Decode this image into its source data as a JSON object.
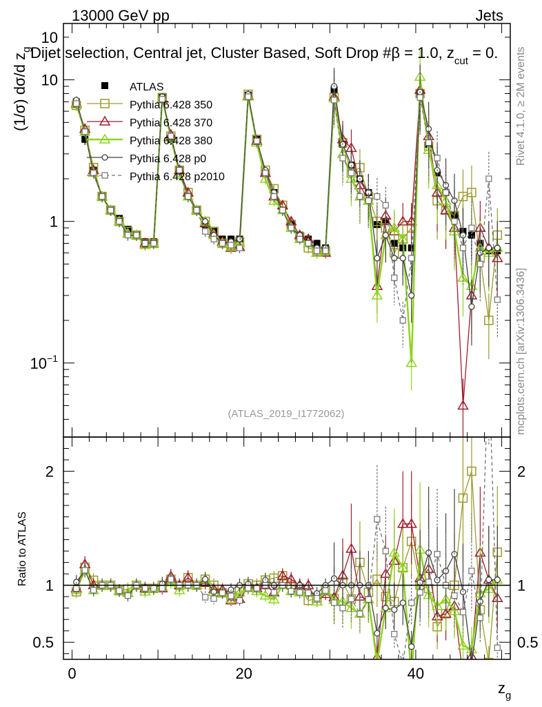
{
  "header": {
    "left": "13000 GeV pp",
    "right": "Jets"
  },
  "chart_title": "Dijet selection, Central jet, Cluster Based, Soft Drop #β = 1.0, z",
  "chart_title_sub": "cut",
  "chart_title_tail": " = 0.",
  "side_labels": {
    "rivet": "Rivet 4.1.0, ≥ 2M events",
    "mcplots": "mcplots.cern.ch [arXiv:1306.3436]"
  },
  "watermark": "(ATLAS_2019_I1772062)",
  "colors": {
    "ATLAS": "#000000",
    "350": "#9a9a2e",
    "370": "#a01c2c",
    "380": "#8fd41e",
    "p0": "#404040",
    "p2010": "#707070"
  },
  "chart_data": {
    "type": "line",
    "title": "Dijet selection, Central jet, Cluster Based, Soft Drop #β = 1.0, z_cut = 0.",
    "xlabel": "z_g",
    "ylabel_main": "(1/σ) dσ/d z_g",
    "ylabel_ratio": "Ratio to ATLAS",
    "xlim": [
      -1,
      51
    ],
    "ylim_main": [
      0.03,
      25
    ],
    "yscale_main": "log",
    "ylim_ratio": [
      0.35,
      2.3
    ],
    "x_ticks": [
      "0",
      "20",
      "40"
    ],
    "x_tick_values": [
      0,
      20,
      40
    ],
    "y_ticks_main": [
      {
        "v": 0.1,
        "label": "10",
        "sup": "−1"
      },
      {
        "v": 1,
        "label": "1",
        "sup": ""
      },
      {
        "v": 10,
        "label": "10",
        "sup": ""
      }
    ],
    "y_ticks_ratio": [
      {
        "v": 0.5,
        "label": "0.5"
      },
      {
        "v": 1,
        "label": "1"
      },
      {
        "v": 2,
        "label": "2"
      }
    ],
    "legend_position": "top-left",
    "x": [
      0.5,
      1.5,
      2.5,
      3.5,
      4.5,
      5.5,
      6.5,
      7.5,
      8.5,
      9.5,
      10.5,
      11.5,
      12.5,
      13.5,
      14.5,
      15.5,
      16.5,
      17.5,
      18.5,
      19.5,
      20.5,
      21.5,
      22.5,
      23.5,
      24.5,
      25.5,
      26.5,
      27.5,
      28.5,
      29.5,
      30.5,
      31.5,
      32.5,
      33.5,
      34.5,
      35.5,
      36.5,
      37.5,
      38.5,
      39.5,
      40.5,
      41.5,
      42.5,
      43.5,
      44.5,
      45.5,
      46.5,
      47.5,
      48.5,
      49.5
    ],
    "series": [
      {
        "name": "ATLAS",
        "key": "ATLAS",
        "style": "data",
        "values": [
          7.0,
          3.8,
          2.3,
          1.5,
          1.2,
          1.05,
          0.88,
          0.8,
          0.72,
          0.72,
          7.5,
          3.8,
          2.3,
          1.5,
          1.2,
          0.95,
          0.85,
          0.75,
          0.75,
          0.75,
          7.8,
          3.8,
          2.2,
          1.6,
          1.2,
          0.95,
          0.8,
          0.75,
          0.7,
          0.65,
          8.5,
          3.5,
          2.5,
          2.0,
          1.6,
          0.95,
          1.0,
          0.7,
          0.65,
          0.65,
          8.0,
          3.5,
          2.2,
          1.6,
          1.1,
          0.85,
          0.8,
          0.7,
          0.62,
          0.62
        ]
      },
      {
        "name": "Pythia 6.428 350",
        "key": "350",
        "style": "square",
        "values": [
          6.6,
          4.4,
          2.4,
          1.5,
          1.2,
          1.0,
          0.85,
          0.8,
          0.7,
          0.7,
          7.5,
          4.0,
          2.3,
          1.6,
          1.2,
          1.0,
          0.85,
          0.7,
          0.68,
          0.72,
          7.9,
          3.8,
          2.3,
          1.7,
          1.3,
          0.95,
          0.78,
          0.65,
          0.62,
          0.62,
          7.5,
          3.6,
          2.2,
          2.4,
          1.5,
          1.0,
          0.9,
          0.6,
          0.75,
          0.9,
          8.0,
          3.4,
          1.4,
          1.2,
          1.1,
          1.5,
          1.6,
          0.55,
          0.2,
          0.8
        ]
      },
      {
        "name": "Pythia 6.428 370",
        "key": "370",
        "style": "triangle",
        "values": [
          6.8,
          4.5,
          2.3,
          1.5,
          1.2,
          1.0,
          0.82,
          0.8,
          0.7,
          0.7,
          7.3,
          4.1,
          2.3,
          1.6,
          1.2,
          0.97,
          0.82,
          0.72,
          0.65,
          0.66,
          7.7,
          3.7,
          2.2,
          1.5,
          1.3,
          1.0,
          0.8,
          0.75,
          0.6,
          0.6,
          7.6,
          3.8,
          3.3,
          1.8,
          1.4,
          0.35,
          1.1,
          0.85,
          1.0,
          1.0,
          8.5,
          4.0,
          1.6,
          1.2,
          0.9,
          0.05,
          0.3,
          0.9,
          0.65,
          0.55
        ]
      },
      {
        "name": "Pythia 6.428 380",
        "key": "380",
        "style": "triangle",
        "values": [
          6.7,
          4.3,
          2.2,
          1.5,
          1.2,
          1.0,
          0.82,
          0.8,
          0.68,
          0.7,
          7.4,
          3.9,
          2.2,
          1.5,
          1.2,
          1.0,
          0.8,
          0.7,
          0.66,
          0.7,
          7.6,
          3.6,
          2.0,
          1.4,
          1.2,
          0.9,
          0.75,
          0.7,
          0.6,
          0.62,
          7.4,
          3.0,
          2.0,
          1.5,
          1.4,
          0.3,
          0.8,
          0.9,
          0.75,
          0.1,
          10.5,
          3.2,
          1.8,
          1.4,
          0.85,
          0.4,
          0.35,
          0.65,
          0.6,
          0.65
        ]
      },
      {
        "name": "Pythia 6.428 p0",
        "key": "p0",
        "style": "circle",
        "values": [
          7.2,
          4.3,
          2.2,
          1.5,
          1.2,
          1.0,
          0.8,
          0.8,
          0.7,
          0.7,
          7.6,
          4.0,
          2.3,
          1.5,
          1.2,
          1.0,
          0.8,
          0.7,
          0.72,
          0.75,
          7.9,
          3.7,
          2.3,
          1.6,
          1.2,
          0.9,
          0.8,
          0.7,
          0.65,
          0.65,
          9.0,
          3.5,
          2.5,
          2.0,
          1.6,
          0.55,
          0.8,
          0.55,
          0.55,
          0.3,
          8.2,
          4.5,
          2.3,
          1.8,
          1.4,
          0.8,
          0.25,
          0.6,
          0.65,
          0.65
        ]
      },
      {
        "name": "Pythia 6.428 p2010",
        "key": "p2010",
        "style": "opensquare-dashed",
        "values": [
          6.8,
          4.3,
          2.2,
          1.5,
          1.2,
          1.0,
          0.8,
          0.8,
          0.7,
          0.7,
          7.3,
          4.0,
          2.3,
          1.5,
          1.2,
          0.85,
          0.75,
          0.7,
          0.68,
          0.65,
          7.6,
          3.7,
          2.2,
          1.5,
          1.2,
          0.9,
          0.75,
          0.7,
          0.62,
          0.62,
          7.2,
          2.8,
          2.2,
          1.5,
          1.4,
          1.5,
          1.3,
          0.4,
          0.2,
          0.55,
          7.5,
          3.6,
          2.8,
          1.6,
          1.0,
          0.65,
          0.9,
          0.5,
          2.0,
          0.28
        ]
      }
    ]
  }
}
